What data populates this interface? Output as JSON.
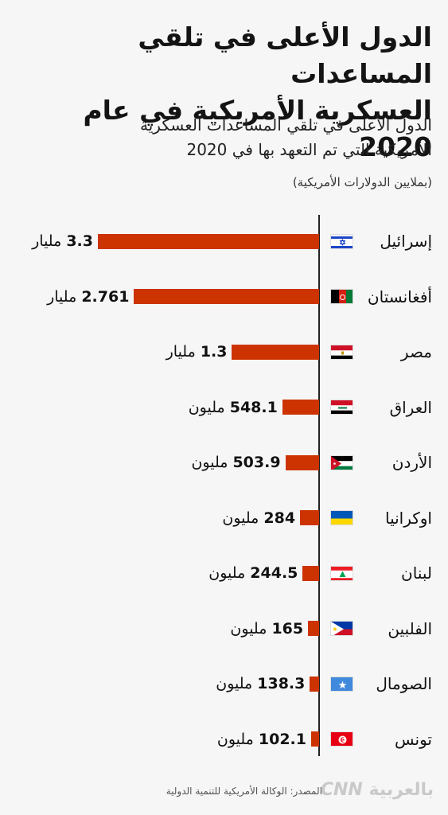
{
  "header": {
    "title_line1": "الدول الأعلى في تلقي المساعدات",
    "title_line2": "العسكرية الأمريكية في عام 2020",
    "subtitle_line1": "الدول الأعلى في تلقي المساعدات العسكرية",
    "subtitle_line2": "الأمريكية التي تم التعهد بها في 2020",
    "unit": "(بملايين الدولارات الأمريكية)"
  },
  "chart_data": {
    "type": "bar",
    "orientation": "horizontal",
    "title": "الدول الأعلى في تلقي المساعدات العسكرية الأمريكية في عام 2020",
    "subtitle": "الدول الأعلى في تلقي المساعدات العسكرية الأمريكية التي تم التعهد بها في 2020",
    "unit": "(بملايين الدولارات الأمريكية)",
    "bar_color": "#cc3300",
    "categories": [
      "إسرائيل",
      "أفغانستان",
      "مصر",
      "العراق",
      "الأردن",
      "اوكرانيا",
      "لبنان",
      "الفلبين",
      "الصومال",
      "تونس"
    ],
    "values": [
      3300,
      2761,
      1300,
      548.1,
      503.9,
      284,
      244.5,
      165,
      138.3,
      102.1
    ],
    "labels": [
      {
        "num": "3.3",
        "unit": "مليار"
      },
      {
        "num": "2.761",
        "unit": "مليار"
      },
      {
        "num": "1.3",
        "unit": "مليار"
      },
      {
        "num": "548.1",
        "unit": "مليون"
      },
      {
        "num": "503.9",
        "unit": "مليون"
      },
      {
        "num": "284",
        "unit": "مليون"
      },
      {
        "num": "244.5",
        "unit": "مليون"
      },
      {
        "num": "165",
        "unit": "مليون"
      },
      {
        "num": "138.3",
        "unit": "مليون"
      },
      {
        "num": "102.1",
        "unit": "مليون"
      }
    ],
    "flags": [
      "israel-flag-icon",
      "afghanistan-flag-icon",
      "egypt-flag-icon",
      "iraq-flag-icon",
      "jordan-flag-icon",
      "ukraine-flag-icon",
      "lebanon-flag-icon",
      "philippines-flag-icon",
      "somalia-flag-icon",
      "tunisia-flag-icon"
    ]
  },
  "footer": {
    "source": "المصدر: الوكالة الأمريكية للتنمية الدولية",
    "logo_cnn": "CNN",
    "logo_arabic": "بالعربية"
  }
}
